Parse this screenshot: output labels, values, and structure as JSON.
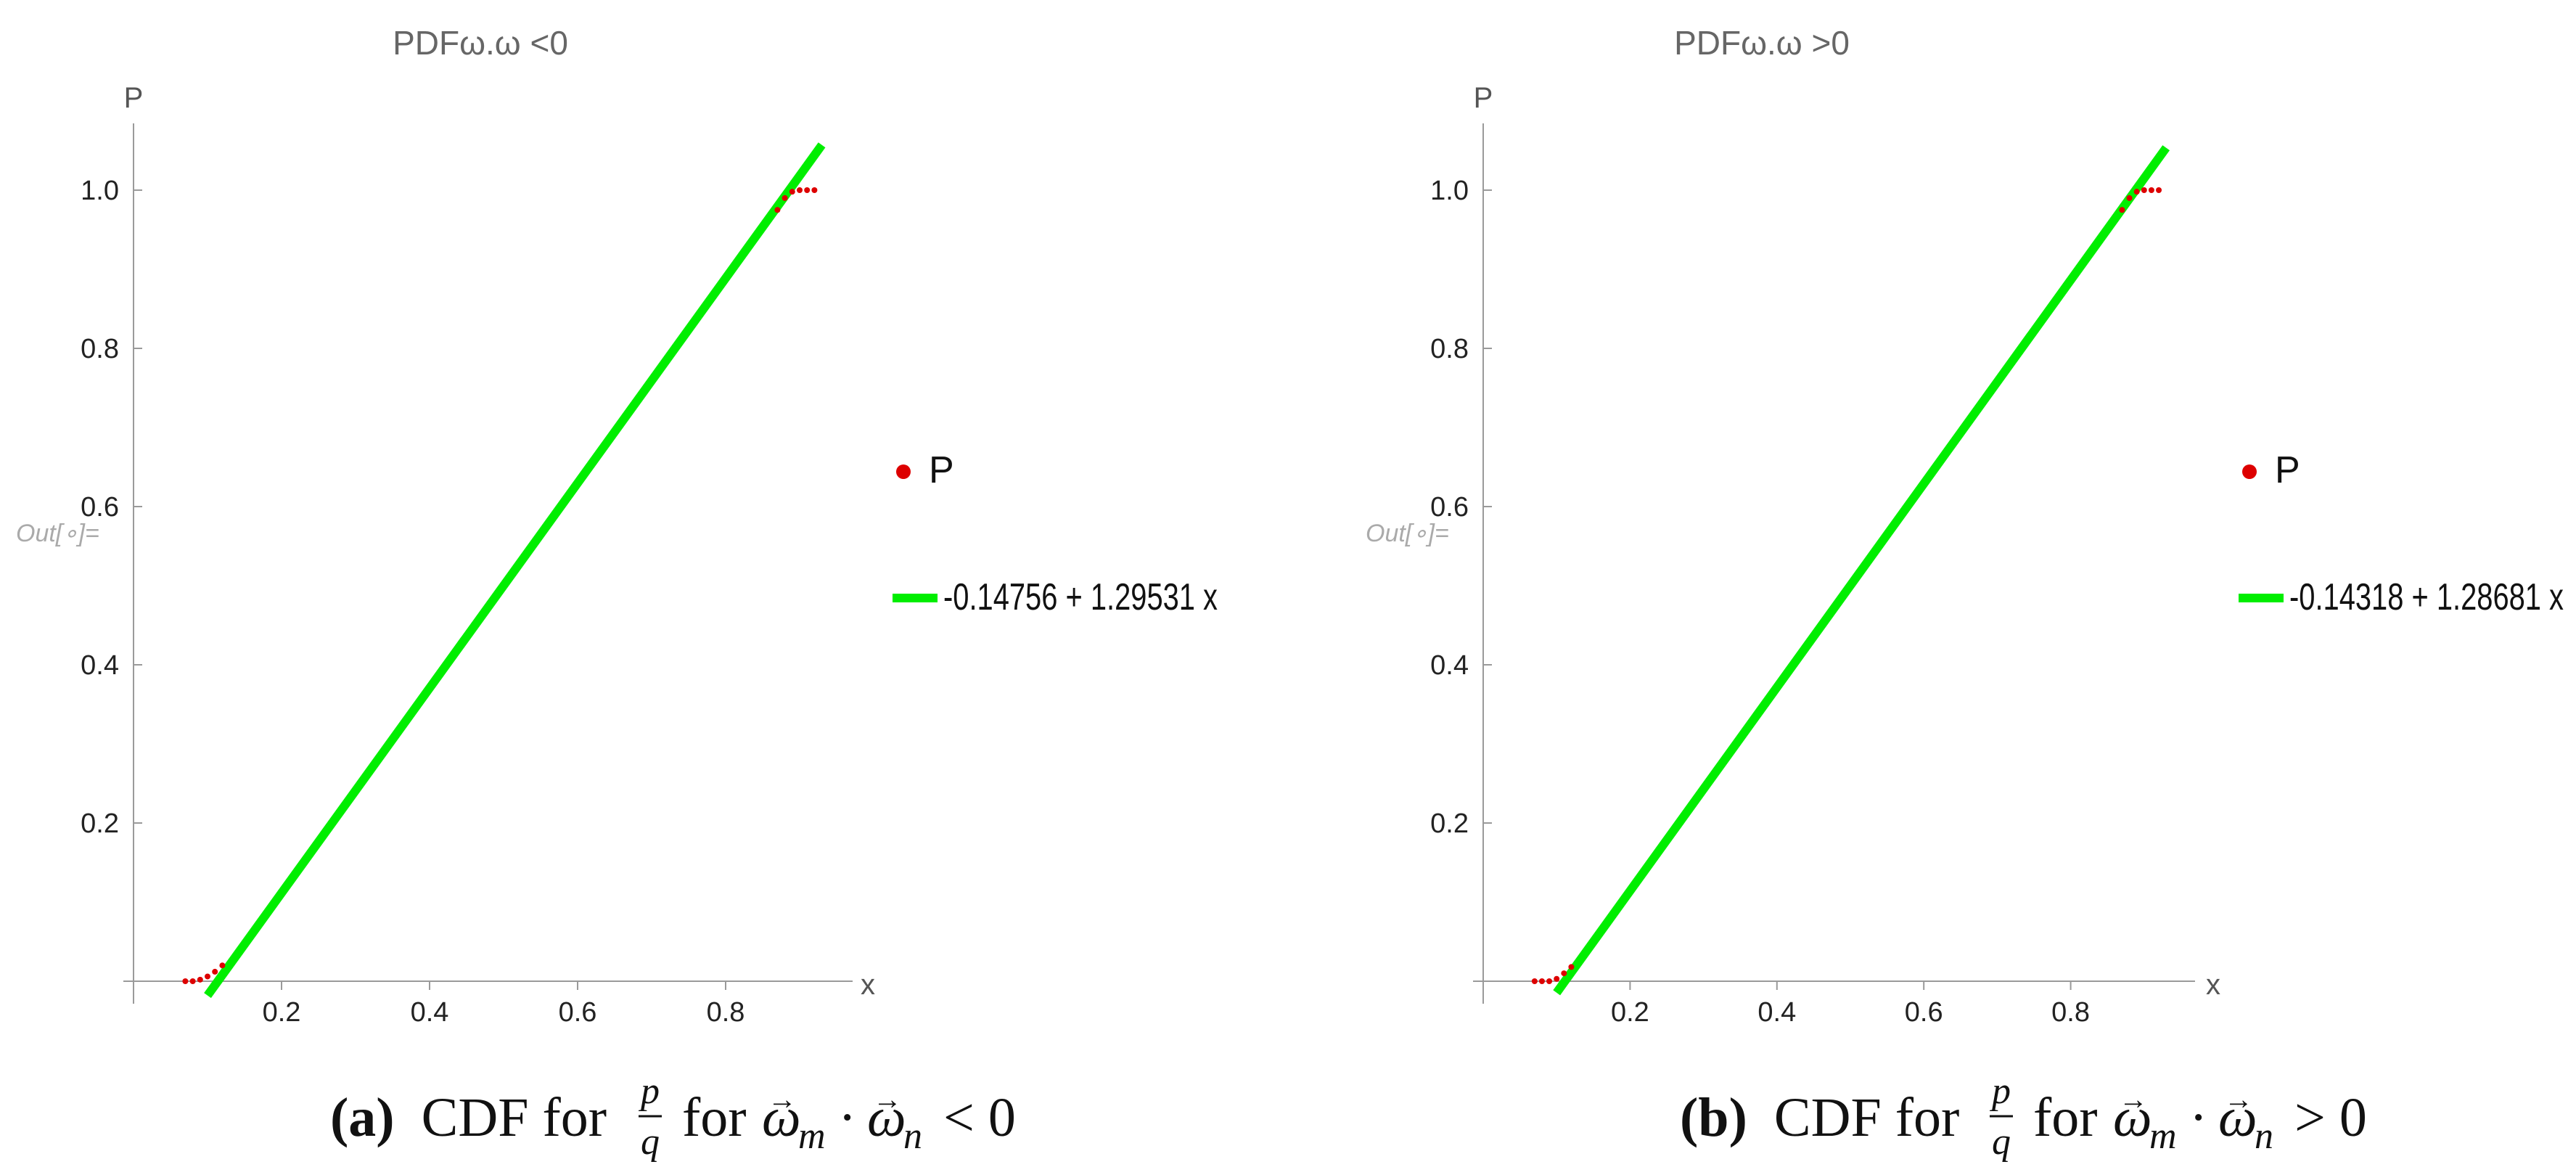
{
  "chart_data": [
    {
      "type": "line",
      "title": "PDFω.ω <0",
      "xlabel": "x",
      "ylabel": "P",
      "xlim": [
        0.0,
        0.95
      ],
      "ylim": [
        0.0,
        1.05
      ],
      "x_ticks": [
        0.2,
        0.4,
        0.6,
        0.8
      ],
      "y_ticks": [
        0.2,
        0.4,
        0.6,
        0.8,
        1.0
      ],
      "x_tick_labels": [
        "0.2",
        "0.4",
        "0.6",
        "0.8"
      ],
      "y_tick_labels": [
        "0.2",
        "0.4",
        "0.6",
        "0.8",
        "1.0"
      ],
      "legend_position": "right",
      "out_label": "Out[∘]=",
      "series": [
        {
          "name": "P",
          "kind": "points",
          "color": "#dd0000",
          "x": [
            0.07,
            0.08,
            0.09,
            0.1,
            0.11,
            0.12,
            0.87,
            0.88,
            0.89,
            0.9,
            0.91,
            0.92
          ],
          "y": [
            0.0,
            0.0,
            0.002,
            0.006,
            0.012,
            0.02,
            0.975,
            0.99,
            0.998,
            1.0,
            1.0,
            1.0
          ]
        },
        {
          "name": "-0.14756 + 1.29531 x",
          "kind": "line",
          "color": "#00ee00",
          "intercept": -0.14756,
          "slope": 1.29531
        }
      ],
      "caption_label": "(a)",
      "caption_text": "CDF for",
      "caption_for": "for",
      "caption_rel": "< 0"
    },
    {
      "type": "line",
      "title": "PDFω.ω >0",
      "xlabel": "x",
      "ylabel": "P",
      "xlim": [
        0.0,
        0.95
      ],
      "ylim": [
        0.0,
        1.05
      ],
      "x_ticks": [
        0.2,
        0.4,
        0.6,
        0.8
      ],
      "y_ticks": [
        0.2,
        0.4,
        0.6,
        0.8,
        1.0
      ],
      "x_tick_labels": [
        "0.2",
        "0.4",
        "0.6",
        "0.8"
      ],
      "y_tick_labels": [
        "0.2",
        "0.4",
        "0.6",
        "0.8",
        "1.0"
      ],
      "legend_position": "right",
      "out_label": "Out[∘]=",
      "series": [
        {
          "name": "P",
          "kind": "points",
          "color": "#dd0000",
          "x": [
            0.07,
            0.08,
            0.09,
            0.1,
            0.11,
            0.12,
            0.87,
            0.88,
            0.89,
            0.9,
            0.91,
            0.92
          ],
          "y": [
            0.0,
            0.0,
            0.0,
            0.003,
            0.01,
            0.018,
            0.975,
            0.99,
            0.998,
            1.0,
            1.0,
            1.0
          ]
        },
        {
          "name": "-0.14318 + 1.28681 x",
          "kind": "line",
          "color": "#00ee00",
          "intercept": -0.14318,
          "slope": 1.28681
        }
      ],
      "caption_label": "(b)",
      "caption_text": "CDF for",
      "caption_for": "for",
      "caption_rel": "> 0"
    }
  ]
}
